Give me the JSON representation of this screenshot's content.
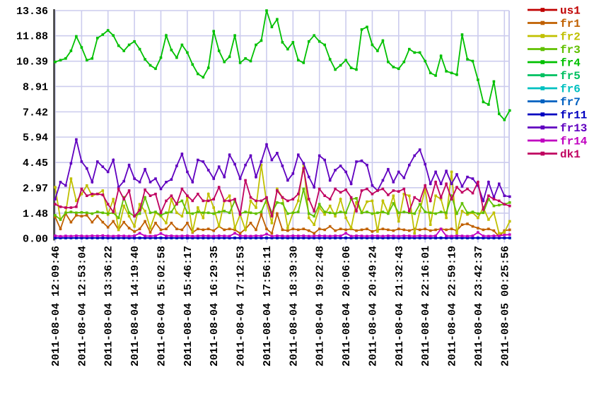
{
  "chart_data": {
    "type": "line",
    "title": "",
    "xlabel": "",
    "ylabel": "",
    "grid": true,
    "legend_position": "right",
    "background_color": "#ffffff",
    "grid_color": "#ccccee",
    "axis_color": "#3a3a3a",
    "label_color": "#000000",
    "ylim": [
      0,
      13.36
    ],
    "y_tick_labels": [
      "13.36",
      "11.88",
      "10.39",
      "8.91",
      "7.42",
      "5.94",
      "4.45",
      "2.97",
      "1.48",
      "0.00"
    ],
    "x_tick_labels": [
      "2011-08-04 12:09:46",
      "2011-08-04 12:53:04",
      "2011-08-04 13:36:22",
      "2011-08-04 14:19:40",
      "2011-08-04 15:02:58",
      "2011-08-04 15:46:17",
      "2011-08-04 16:29:35",
      "2011-08-04 17:12:53",
      "2011-08-04 17:56:11",
      "2011-08-04 18:39:30",
      "2011-08-04 19:22:48",
      "2011-08-04 20:06:06",
      "2011-08-04 20:49:24",
      "2011-08-04 21:32:43",
      "2011-08-04 22:16:01",
      "2011-08-04 22:59:19",
      "2011-08-04 23:42:37",
      "2011-08-05 00:25:56"
    ],
    "points_per_tick_interval": 5,
    "marker": "square",
    "series": [
      {
        "name": "us1",
        "color": "#c00000",
        "flat": 0.02
      },
      {
        "name": "fr1",
        "color": "#c06000",
        "values": [
          1.25,
          0.55,
          1.45,
          0.95,
          1.35,
          1.3,
          1.35,
          0.95,
          1.3,
          0.95,
          0.65,
          1.0,
          0.5,
          0.95,
          0.6,
          0.4,
          0.55,
          1.0,
          0.35,
          0.9,
          0.5,
          0.55,
          0.9,
          0.55,
          0.5,
          0.9,
          0.35,
          0.55,
          0.5,
          0.55,
          0.45,
          0.7,
          0.5,
          0.55,
          0.5,
          0.3,
          0.55,
          0.9,
          0.5,
          1.4,
          0.55,
          0.3,
          1.45,
          0.5,
          0.45,
          0.55,
          0.5,
          0.55,
          0.45,
          0.3,
          0.55,
          0.5,
          0.7,
          0.45,
          0.55,
          0.5,
          0.55,
          0.45,
          0.5,
          0.55,
          0.4,
          0.5,
          0.55,
          0.5,
          0.45,
          0.55,
          0.5,
          0.45,
          0.55,
          0.5,
          0.55,
          0.45,
          0.5,
          0.55,
          0.5,
          0.55,
          0.45,
          0.8,
          0.85,
          0.7,
          0.6,
          0.5,
          0.55,
          0.45,
          0.1,
          0.45,
          0.5
        ]
      },
      {
        "name": "fr2",
        "color": "#c0c000",
        "values": [
          3.0,
          1.1,
          1.5,
          3.5,
          2.2,
          2.6,
          3.1,
          2.5,
          2.6,
          2.8,
          1.4,
          2.3,
          0.5,
          1.9,
          1.3,
          0.7,
          2.0,
          1.6,
          0.6,
          1.5,
          1.3,
          0.9,
          2.3,
          1.5,
          1.3,
          2.4,
          0.4,
          1.8,
          1.2,
          2.6,
          1.8,
          0.7,
          2.2,
          2.5,
          0.6,
          1.4,
          0.5,
          2.2,
          1.8,
          4.3,
          2.1,
          0.9,
          2.9,
          2.4,
          0.6,
          1.5,
          2.2,
          4.35,
          1.2,
          0.8,
          1.8,
          1.4,
          1.9,
          1.3,
          2.3,
          1.2,
          0.6,
          2.1,
          1.5,
          2.15,
          2.2,
          0.4,
          2.2,
          1.5,
          2.5,
          1.0,
          2.6,
          2.5,
          0.3,
          1.6,
          2.9,
          0.8,
          2.5,
          2.3,
          1.2,
          3.9,
          0.3,
          1.6,
          1.4,
          1.5,
          1.2,
          1.8,
          1.1,
          1.5,
          0.3,
          0.35,
          1.0
        ]
      },
      {
        "name": "fr3",
        "color": "#60c000",
        "values": [
          1.35,
          1.1,
          1.5,
          1.55,
          1.5,
          1.52,
          1.5,
          1.45,
          1.55,
          1.5,
          1.45,
          1.5,
          1.2,
          2.4,
          1.5,
          1.3,
          1.45,
          2.4,
          1.5,
          1.55,
          1.35,
          1.5,
          1.55,
          2.05,
          2.2,
          1.5,
          1.45,
          1.55,
          1.5,
          1.5,
          1.45,
          1.55,
          1.6,
          1.5,
          2.2,
          1.45,
          1.55,
          1.5,
          1.45,
          1.55,
          2.3,
          1.5,
          2.1,
          2.05,
          1.45,
          1.5,
          1.55,
          2.9,
          1.45,
          1.3,
          2.0,
          1.55,
          1.5,
          1.45,
          1.55,
          1.5,
          2.3,
          2.35,
          1.5,
          1.55,
          1.45,
          1.5,
          1.55,
          1.45,
          2.05,
          1.5,
          1.55,
          1.5,
          1.45,
          2.0,
          1.55,
          1.5,
          1.45,
          1.55,
          1.5,
          2.5,
          1.45,
          2.05,
          1.5,
          1.55,
          1.45,
          1.5,
          2.3,
          1.9,
          1.95,
          2.0,
          2.1
        ]
      },
      {
        "name": "fr4",
        "color": "#00c000",
        "values": [
          10.35,
          10.45,
          10.55,
          11.0,
          11.85,
          11.2,
          10.45,
          10.55,
          11.75,
          11.95,
          12.2,
          11.9,
          11.3,
          11.0,
          11.35,
          11.55,
          11.1,
          10.5,
          10.15,
          9.95,
          10.6,
          11.9,
          11.05,
          10.6,
          11.35,
          10.9,
          10.2,
          9.65,
          9.45,
          10.0,
          12.15,
          11.0,
          10.35,
          10.65,
          11.9,
          10.3,
          10.55,
          10.4,
          11.35,
          11.6,
          13.36,
          12.4,
          12.85,
          11.5,
          11.1,
          11.5,
          10.45,
          10.3,
          11.55,
          11.9,
          11.55,
          11.35,
          10.5,
          9.9,
          10.15,
          10.45,
          10.0,
          9.9,
          12.25,
          12.4,
          11.35,
          11.0,
          11.6,
          10.35,
          10.05,
          9.95,
          10.35,
          11.1,
          10.9,
          10.9,
          10.4,
          9.7,
          9.55,
          10.7,
          9.8,
          9.7,
          9.6,
          11.95,
          10.5,
          10.4,
          9.3,
          8.0,
          7.85,
          9.2,
          7.3,
          6.95,
          7.5
        ]
      },
      {
        "name": "fr5",
        "color": "#00c060",
        "flat": 0.02
      },
      {
        "name": "fr6",
        "color": "#00c0c0",
        "flat": 0.02
      },
      {
        "name": "fr7",
        "color": "#0060c0",
        "flat": 0.02
      },
      {
        "name": "fr11",
        "color": "#0000c0",
        "flat": 0.03
      },
      {
        "name": "fr13",
        "color": "#6000c0",
        "values": [
          2.3,
          3.3,
          3.1,
          4.4,
          5.8,
          4.5,
          4.1,
          3.3,
          4.5,
          4.2,
          3.9,
          4.6,
          3.0,
          3.35,
          4.3,
          3.5,
          3.3,
          4.05,
          3.3,
          3.5,
          2.9,
          3.3,
          3.45,
          4.25,
          4.95,
          3.9,
          3.3,
          4.6,
          4.5,
          4.0,
          3.5,
          4.2,
          3.6,
          4.9,
          4.35,
          3.5,
          4.3,
          4.85,
          3.6,
          4.5,
          5.5,
          4.6,
          5.0,
          4.25,
          3.4,
          3.8,
          4.9,
          4.4,
          3.6,
          3.0,
          4.85,
          4.6,
          3.4,
          4.0,
          4.25,
          3.9,
          3.2,
          4.5,
          4.55,
          4.3,
          3.1,
          2.8,
          3.4,
          4.05,
          3.3,
          3.9,
          3.55,
          4.3,
          4.85,
          5.2,
          4.35,
          3.2,
          3.9,
          3.2,
          3.95,
          3.2,
          3.75,
          3.05,
          3.6,
          3.5,
          3.1,
          2.2,
          3.3,
          2.4,
          3.2,
          2.5,
          2.45
        ]
      },
      {
        "name": "fr14",
        "color": "#c000c0",
        "values": [
          0.15,
          0.12,
          0.14,
          0.13,
          0.15,
          0.14,
          0.13,
          0.15,
          0.14,
          0.16,
          0.14,
          0.13,
          0.15,
          0.14,
          0.13,
          0.15,
          0.3,
          0.14,
          0.13,
          0.15,
          0.28,
          0.14,
          0.15,
          0.13,
          0.14,
          0.15,
          0.13,
          0.14,
          0.15,
          0.14,
          0.13,
          0.15,
          0.14,
          0.13,
          0.3,
          0.15,
          0.14,
          0.13,
          0.15,
          0.14,
          0.25,
          0.13,
          0.15,
          0.14,
          0.13,
          0.15,
          0.14,
          0.15,
          0.13,
          0.14,
          0.15,
          0.14,
          0.13,
          0.15,
          0.14,
          0.3,
          0.13,
          0.15,
          0.14,
          0.13,
          0.15,
          0.14,
          0.13,
          0.15,
          0.14,
          0.13,
          0.15,
          0.14,
          0.13,
          0.15,
          0.14,
          0.13,
          0.15,
          0.55,
          0.14,
          0.13,
          0.15,
          0.14,
          0.13,
          0.15,
          0.35,
          0.14,
          0.13,
          0.15,
          0.14,
          0.2,
          0.22
        ]
      },
      {
        "name": "dk1",
        "color": "#c00060",
        "values": [
          2.0,
          1.85,
          1.8,
          1.8,
          1.85,
          2.9,
          2.5,
          2.6,
          2.6,
          2.55,
          2.0,
          1.55,
          2.9,
          2.3,
          2.8,
          1.3,
          1.65,
          2.85,
          2.5,
          2.6,
          1.5,
          2.2,
          2.5,
          2.0,
          2.9,
          2.5,
          2.2,
          2.6,
          2.2,
          2.2,
          2.3,
          3.0,
          2.2,
          2.2,
          2.3,
          1.4,
          3.4,
          2.4,
          2.2,
          2.2,
          2.4,
          1.3,
          2.8,
          2.4,
          2.2,
          2.3,
          2.6,
          4.1,
          2.3,
          1.6,
          2.9,
          2.5,
          2.3,
          2.9,
          2.7,
          2.85,
          2.4,
          1.6,
          2.8,
          2.9,
          2.6,
          2.8,
          2.9,
          2.55,
          2.8,
          2.75,
          2.9,
          1.6,
          2.4,
          2.2,
          3.1,
          2.2,
          3.3,
          2.4,
          3.2,
          2.3,
          3.0,
          2.7,
          2.9,
          2.65,
          3.3,
          1.7,
          2.5,
          2.3,
          2.2,
          2.0,
          1.9
        ]
      }
    ]
  }
}
